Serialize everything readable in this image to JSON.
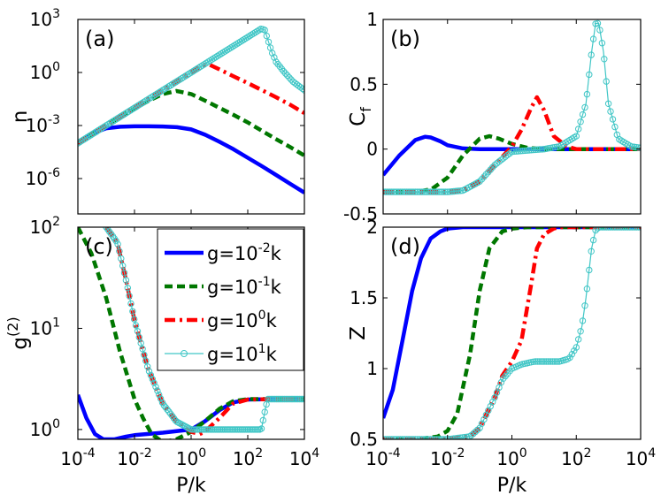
{
  "figure": {
    "x_label": "P/k"
  },
  "legend": [
    {
      "prefix": "g=10",
      "exp": "-2",
      "suffix": "k"
    },
    {
      "prefix": "g=10",
      "exp": "-1",
      "suffix": "k"
    },
    {
      "prefix": "g=10",
      "exp": "0",
      "suffix": "k"
    },
    {
      "prefix": "g=10",
      "exp": "1",
      "suffix": "k"
    }
  ],
  "colors": {
    "g_1e-2": "#0000ff",
    "g_1e-1": "#007700",
    "g_1e0": "#ff0000",
    "g_1e1": "#40c6c6"
  },
  "chart_data": [
    {
      "type": "line",
      "panel_label": "(a)",
      "ylabel": "n",
      "xlabel": "",
      "xscale": "log",
      "yscale": "log",
      "xlim": [
        0.0001,
        10000
      ],
      "ylim": [
        1e-08,
        1000
      ],
      "x_ticks": [
        {
          "value": 0.0001,
          "base": "10",
          "exp": "-4"
        },
        {
          "value": 0.01,
          "base": "10",
          "exp": "-2"
        },
        {
          "value": 1,
          "base": "10",
          "exp": "0"
        },
        {
          "value": 100,
          "base": "10",
          "exp": "2"
        },
        {
          "value": 10000,
          "base": "10",
          "exp": "4"
        }
      ],
      "x_tick_labels_shown": false,
      "y_ticks": [
        {
          "value": 1e-06,
          "base": "10",
          "exp": "-6"
        },
        {
          "value": 0.001,
          "base": "10",
          "exp": "-3"
        },
        {
          "value": 1,
          "base": "10",
          "exp": "0"
        },
        {
          "value": 1000,
          "base": "10",
          "exp": "3"
        }
      ],
      "series": [
        {
          "key": "g_1e-2",
          "style": "solid",
          "x": [
            0.0001,
            0.000316,
            0.001,
            0.00316,
            0.01,
            0.0316,
            0.1,
            0.316,
            1,
            3.16,
            10,
            31.6,
            100,
            316,
            1000,
            3162,
            10000
          ],
          "y": [
            0.0001,
            0.00035,
            0.0007,
            0.00085,
            0.0009,
            0.0009,
            0.00088,
            0.0008,
            0.0006,
            0.0003,
            0.00012,
            4.5e-05,
            1.5e-05,
            5e-06,
            1.6e-06,
            5e-07,
            1.6e-07
          ]
        },
        {
          "key": "g_1e-1",
          "style": "dashed",
          "x": [
            0.0001,
            0.000316,
            0.001,
            0.00316,
            0.01,
            0.0316,
            0.1,
            0.3,
            1,
            3.16,
            10,
            31.6,
            100,
            316,
            1000,
            3162,
            10000
          ],
          "y": [
            0.0001,
            0.00032,
            0.001,
            0.0032,
            0.009,
            0.025,
            0.06,
            0.09,
            0.06,
            0.025,
            0.01,
            0.004,
            0.0015,
            0.0005,
            0.00017,
            6e-05,
            2e-05
          ]
        },
        {
          "key": "g_1e0",
          "style": "dashdot",
          "x": [
            0.0001,
            0.001,
            0.01,
            0.1,
            1,
            2.5,
            4,
            10,
            31.6,
            100,
            316,
            1000,
            3162,
            10000
          ],
          "y": [
            0.0001,
            0.001,
            0.01,
            0.1,
            1,
            2.5,
            3,
            1.5,
            0.6,
            0.25,
            0.1,
            0.04,
            0.015,
            0.005
          ]
        },
        {
          "key": "g_1e1",
          "style": "circles",
          "x": [
            0.0001,
            0.001,
            0.01,
            0.1,
            1,
            10,
            100,
            200,
            300,
            400,
            500,
            700,
            1000,
            2000,
            4000,
            10000
          ],
          "y": [
            0.0001,
            0.001,
            0.01,
            0.1,
            1,
            10,
            100,
            200,
            300,
            250,
            80,
            15,
            4,
            1,
            0.3,
            0.1
          ]
        }
      ]
    },
    {
      "type": "line",
      "panel_label": "(b)",
      "ylabel_base": "C",
      "ylabel_sub": "f",
      "xscale": "log",
      "yscale": "linear",
      "xlim": [
        0.0001,
        10000
      ],
      "ylim": [
        -0.5,
        1
      ],
      "x_ticks": [
        {
          "value": 0.0001,
          "base": "10",
          "exp": "-4"
        },
        {
          "value": 0.01,
          "base": "10",
          "exp": "-2"
        },
        {
          "value": 1,
          "base": "10",
          "exp": "0"
        },
        {
          "value": 100,
          "base": "10",
          "exp": "2"
        },
        {
          "value": 10000,
          "base": "10",
          "exp": "4"
        }
      ],
      "x_tick_labels_shown": false,
      "y_ticks": [
        {
          "value": -0.5,
          "label": "-0.5"
        },
        {
          "value": 0,
          "label": "0"
        },
        {
          "value": 0.5,
          "label": "0.5"
        },
        {
          "value": 1,
          "label": "1"
        }
      ],
      "series": [
        {
          "key": "g_1e-2",
          "style": "solid",
          "x": [
            0.0001,
            0.000316,
            0.001,
            0.002,
            0.003,
            0.006,
            0.01,
            0.03,
            0.1,
            1,
            10000
          ],
          "y": [
            -0.2,
            -0.05,
            0.07,
            0.095,
            0.09,
            0.06,
            0.03,
            0.005,
            0,
            0,
            0
          ]
        },
        {
          "key": "g_1e-1",
          "style": "dashed",
          "x": [
            0.0001,
            0.001,
            0.0032,
            0.01,
            0.03,
            0.1,
            0.2,
            0.4,
            1,
            3,
            10,
            10000
          ],
          "y": [
            -0.33,
            -0.33,
            -0.31,
            -0.22,
            -0.05,
            0.08,
            0.1,
            0.08,
            0.04,
            0.01,
            0,
            0
          ]
        },
        {
          "key": "g_1e0",
          "style": "dashdot",
          "x": [
            0.0001,
            0.01,
            0.03,
            0.1,
            0.3,
            1,
            2,
            4,
            6,
            10,
            20,
            50,
            100,
            10000
          ],
          "y": [
            -0.33,
            -0.33,
            -0.32,
            -0.25,
            -0.12,
            0.02,
            0.15,
            0.32,
            0.4,
            0.3,
            0.1,
            0.02,
            0,
            0
          ]
        },
        {
          "key": "g_1e1",
          "style": "circles",
          "x": [
            0.0001,
            0.01,
            0.03,
            0.1,
            0.3,
            1,
            3,
            10,
            30,
            100,
            200,
            300,
            400,
            500,
            700,
            1000,
            2000,
            5000,
            10000
          ],
          "y": [
            -0.33,
            -0.33,
            -0.32,
            -0.25,
            -0.12,
            -0.02,
            -0.01,
            0,
            0.02,
            0.1,
            0.35,
            0.75,
            0.97,
            0.97,
            0.75,
            0.35,
            0.08,
            0.02,
            0.01
          ]
        }
      ]
    },
    {
      "type": "line",
      "panel_label": "(c)",
      "ylabel_base": "g",
      "ylabel_sup": "(2)",
      "xscale": "log",
      "yscale": "log",
      "xlim": [
        0.0001,
        10000
      ],
      "ylim": [
        0.8,
        100
      ],
      "x_ticks": [
        {
          "value": 0.0001,
          "base": "10",
          "exp": "-4"
        },
        {
          "value": 0.01,
          "base": "10",
          "exp": "-2"
        },
        {
          "value": 1,
          "base": "10",
          "exp": "0"
        },
        {
          "value": 100,
          "base": "10",
          "exp": "2"
        },
        {
          "value": 10000,
          "base": "10",
          "exp": "4"
        }
      ],
      "x_tick_labels_shown": true,
      "y_ticks": [
        {
          "value": 1,
          "base": "10",
          "exp": "0"
        },
        {
          "value": 10,
          "base": "10",
          "exp": "1"
        },
        {
          "value": 100,
          "base": "10",
          "exp": "2"
        }
      ],
      "series": [
        {
          "key": "g_1e-2",
          "style": "solid",
          "x": [
            0.0001,
            0.0002,
            0.0004,
            0.0008,
            0.002,
            0.005,
            0.01,
            0.1,
            1,
            3,
            10,
            30,
            100,
            1000,
            10000
          ],
          "y": [
            2.2,
            1.3,
            0.9,
            0.8,
            0.8,
            0.85,
            0.88,
            0.93,
            1.0,
            1.2,
            1.55,
            1.85,
            1.98,
            2,
            2
          ]
        },
        {
          "key": "g_1e-1",
          "style": "dashed",
          "x": [
            0.0001,
            0.0003,
            0.001,
            0.003,
            0.01,
            0.02,
            0.04,
            0.1,
            0.3,
            1,
            3,
            10,
            30,
            100,
            1000,
            10000
          ],
          "y": [
            100,
            55,
            20,
            6,
            2,
            1.3,
            0.9,
            0.75,
            0.8,
            0.95,
            1.2,
            1.6,
            1.9,
            2,
            2,
            2
          ]
        },
        {
          "key": "g_1e0",
          "style": "dashdot",
          "x": [
            0.001,
            0.0025,
            0.005,
            0.01,
            0.03,
            0.1,
            0.3,
            1,
            2,
            3,
            10,
            30,
            100,
            1000,
            10000
          ],
          "y": [
            100,
            70,
            30,
            12,
            4,
            1.8,
            1.2,
            0.95,
            0.9,
            0.95,
            1.3,
            1.8,
            1.98,
            2,
            2
          ]
        },
        {
          "key": "g_1e1",
          "style": "circles",
          "x": [
            0.001,
            0.0025,
            0.005,
            0.01,
            0.03,
            0.1,
            0.3,
            1,
            3,
            10,
            30,
            100,
            200,
            300,
            400,
            500,
            1000,
            10000
          ],
          "y": [
            100,
            70,
            30,
            12,
            4,
            1.8,
            1.2,
            1.0,
            1.0,
            1.0,
            1.0,
            1.0,
            1.0,
            1.0,
            1.5,
            2,
            2,
            2
          ]
        }
      ]
    },
    {
      "type": "line",
      "panel_label": "(d)",
      "ylabel": "Z",
      "xscale": "log",
      "yscale": "linear",
      "xlim": [
        0.0001,
        10000
      ],
      "ylim": [
        0.5,
        2
      ],
      "x_ticks": [
        {
          "value": 0.0001,
          "base": "10",
          "exp": "-4"
        },
        {
          "value": 0.01,
          "base": "10",
          "exp": "-2"
        },
        {
          "value": 1,
          "base": "10",
          "exp": "0"
        },
        {
          "value": 100,
          "base": "10",
          "exp": "2"
        },
        {
          "value": 10000,
          "base": "10",
          "exp": "4"
        }
      ],
      "x_tick_labels_shown": true,
      "y_ticks": [
        {
          "value": 0.5,
          "label": "0.5"
        },
        {
          "value": 1,
          "label": "1"
        },
        {
          "value": 1.5,
          "label": "1.5"
        },
        {
          "value": 2,
          "label": "2"
        }
      ],
      "series": [
        {
          "key": "g_1e-2",
          "style": "solid",
          "x": [
            0.0001,
            0.0002,
            0.0004,
            0.0008,
            0.0015,
            0.003,
            0.006,
            0.01,
            0.03,
            0.1,
            1,
            10000
          ],
          "y": [
            0.65,
            0.85,
            1.2,
            1.55,
            1.78,
            1.92,
            1.97,
            1.99,
            2,
            2,
            2,
            2
          ]
        },
        {
          "key": "g_1e-1",
          "style": "dashed",
          "x": [
            0.0001,
            0.001,
            0.005,
            0.01,
            0.02,
            0.05,
            0.1,
            0.2,
            0.5,
            1,
            3,
            10000
          ],
          "y": [
            0.5,
            0.5,
            0.52,
            0.56,
            0.68,
            1.1,
            1.55,
            1.85,
            1.97,
            1.99,
            2,
            2
          ]
        },
        {
          "key": "g_1e0",
          "style": "dashdot",
          "x": [
            0.0001,
            0.01,
            0.05,
            0.1,
            0.3,
            0.5,
            1,
            2,
            4,
            6,
            10,
            20,
            30,
            100,
            10000
          ],
          "y": [
            0.5,
            0.5,
            0.52,
            0.58,
            0.8,
            0.95,
            1.05,
            1.2,
            1.6,
            1.85,
            1.95,
            1.99,
            2,
            2,
            2
          ]
        },
        {
          "key": "g_1e1",
          "style": "circles",
          "x": [
            0.0001,
            0.01,
            0.05,
            0.1,
            0.3,
            0.5,
            1,
            2,
            5,
            10,
            30,
            60,
            100,
            150,
            200,
            300,
            400,
            500,
            600,
            10000
          ],
          "y": [
            0.5,
            0.5,
            0.52,
            0.58,
            0.8,
            0.92,
            1.0,
            1.03,
            1.05,
            1.05,
            1.05,
            1.07,
            1.15,
            1.3,
            1.5,
            1.85,
            1.98,
            2,
            2,
            2
          ]
        }
      ]
    }
  ]
}
